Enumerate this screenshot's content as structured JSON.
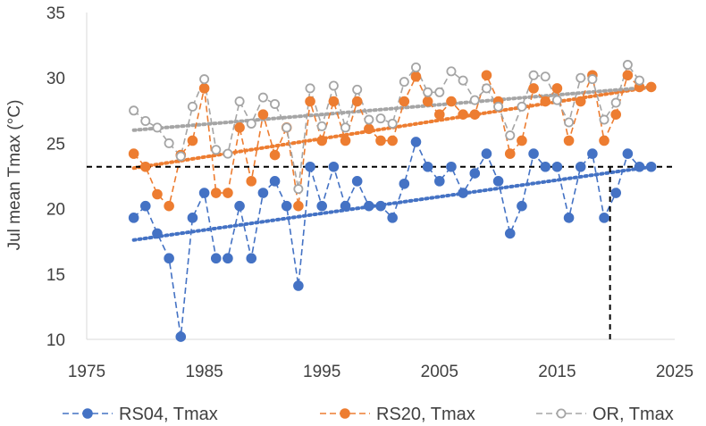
{
  "chart_data": {
    "type": "scatter",
    "title": "",
    "xlabel": "",
    "ylabel": "Jul mean Tmax (°C)",
    "xlim": [
      1975,
      2025
    ],
    "ylim": [
      10,
      35
    ],
    "xticks": [
      1975,
      1985,
      1995,
      2005,
      2015,
      2025
    ],
    "yticks": [
      10,
      15,
      20,
      25,
      30,
      35
    ],
    "grid": false,
    "legend_position": "bottom",
    "series": [
      {
        "name": "RS04, Tmax",
        "color": "#4472C4",
        "marker": "filled-circle",
        "line": "dashed",
        "trendline": {
          "start": [
            1979,
            17.6
          ],
          "end": [
            2023,
            23.2
          ]
        },
        "x": [
          1979,
          1980,
          1981,
          1982,
          1983,
          1984,
          1985,
          1986,
          1987,
          1988,
          1989,
          1990,
          1991,
          1992,
          1993,
          1994,
          1995,
          1996,
          1997,
          1998,
          1999,
          2000,
          2001,
          2002,
          2003,
          2004,
          2005,
          2006,
          2007,
          2008,
          2009,
          2010,
          2011,
          2012,
          2013,
          2014,
          2015,
          2016,
          2017,
          2018,
          2019,
          2020,
          2021,
          2022,
          2023
        ],
        "y": [
          19.3,
          20.2,
          18.1,
          16.2,
          10.2,
          19.3,
          21.2,
          16.2,
          16.2,
          20.2,
          16.2,
          21.2,
          22.1,
          20.2,
          14.1,
          23.2,
          20.2,
          23.2,
          20.2,
          22.1,
          20.2,
          20.2,
          19.3,
          21.9,
          25.1,
          23.2,
          22.1,
          23.2,
          21.2,
          22.7,
          24.2,
          22.1,
          18.1,
          20.2,
          24.2,
          23.2,
          23.2,
          19.3,
          23.2,
          24.2,
          19.3,
          21.2,
          24.2,
          23.2,
          23.2
        ]
      },
      {
        "name": "RS20, Tmax",
        "color": "#ED7D31",
        "marker": "filled-circle",
        "line": "dashed",
        "trendline": {
          "start": [
            1979,
            23.1
          ],
          "end": [
            2023,
            29.3
          ]
        },
        "x": [
          1979,
          1980,
          1981,
          1982,
          1983,
          1984,
          1985,
          1986,
          1987,
          1988,
          1989,
          1990,
          1991,
          1992,
          1993,
          1994,
          1995,
          1996,
          1997,
          1998,
          1999,
          2000,
          2001,
          2002,
          2003,
          2004,
          2005,
          2006,
          2007,
          2008,
          2009,
          2010,
          2011,
          2012,
          2013,
          2014,
          2015,
          2016,
          2017,
          2018,
          2019,
          2020,
          2021,
          2022,
          2023
        ],
        "y": [
          24.2,
          23.2,
          21.1,
          20.2,
          24.1,
          25.2,
          29.2,
          21.2,
          21.2,
          26.2,
          22.1,
          27.2,
          24.1,
          26.2,
          20.2,
          28.2,
          25.2,
          28.2,
          25.2,
          28.2,
          26.1,
          25.2,
          25.2,
          28.2,
          30.1,
          28.2,
          27.2,
          28.2,
          27.2,
          27.2,
          30.2,
          28.2,
          24.2,
          25.2,
          29.2,
          28.2,
          29.2,
          25.2,
          28.2,
          30.2,
          25.2,
          27.2,
          30.2,
          29.3,
          29.3
        ]
      },
      {
        "name": "OR, Tmax",
        "color": "#A5A5A5",
        "marker": "open-circle",
        "line": "dashed",
        "trendline": {
          "start": [
            1979,
            26.0
          ],
          "end": [
            2023,
            29.3
          ]
        },
        "x": [
          1979,
          1980,
          1981,
          1982,
          1983,
          1984,
          1985,
          1986,
          1987,
          1988,
          1989,
          1990,
          1991,
          1992,
          1993,
          1994,
          1995,
          1996,
          1997,
          1998,
          1999,
          2000,
          2001,
          2002,
          2003,
          2004,
          2005,
          2006,
          2007,
          2008,
          2009,
          2010,
          2011,
          2012,
          2013,
          2014,
          2015,
          2016,
          2017,
          2018,
          2019,
          2020,
          2021,
          2022
        ],
        "y": [
          27.5,
          26.7,
          26.2,
          25.0,
          24.0,
          27.8,
          29.9,
          24.5,
          24.2,
          28.2,
          26.5,
          28.5,
          28.0,
          26.2,
          21.5,
          29.2,
          26.3,
          29.4,
          26.2,
          29.1,
          26.8,
          26.9,
          26.5,
          29.7,
          30.8,
          28.9,
          28.9,
          30.5,
          29.8,
          28.3,
          29.2,
          27.8,
          25.6,
          27.8,
          30.2,
          30.1,
          28.3,
          26.6,
          30.0,
          29.9,
          26.8,
          28.1,
          31.0,
          29.8
        ]
      }
    ],
    "reference_lines": [
      {
        "orientation": "horizontal",
        "value": 23.2,
        "style": "dashed",
        "color": "#000000"
      },
      {
        "orientation": "vertical",
        "value": 2019.5,
        "from_y": 10,
        "to_y": 23.2,
        "style": "dashed",
        "color": "#000000"
      }
    ]
  }
}
